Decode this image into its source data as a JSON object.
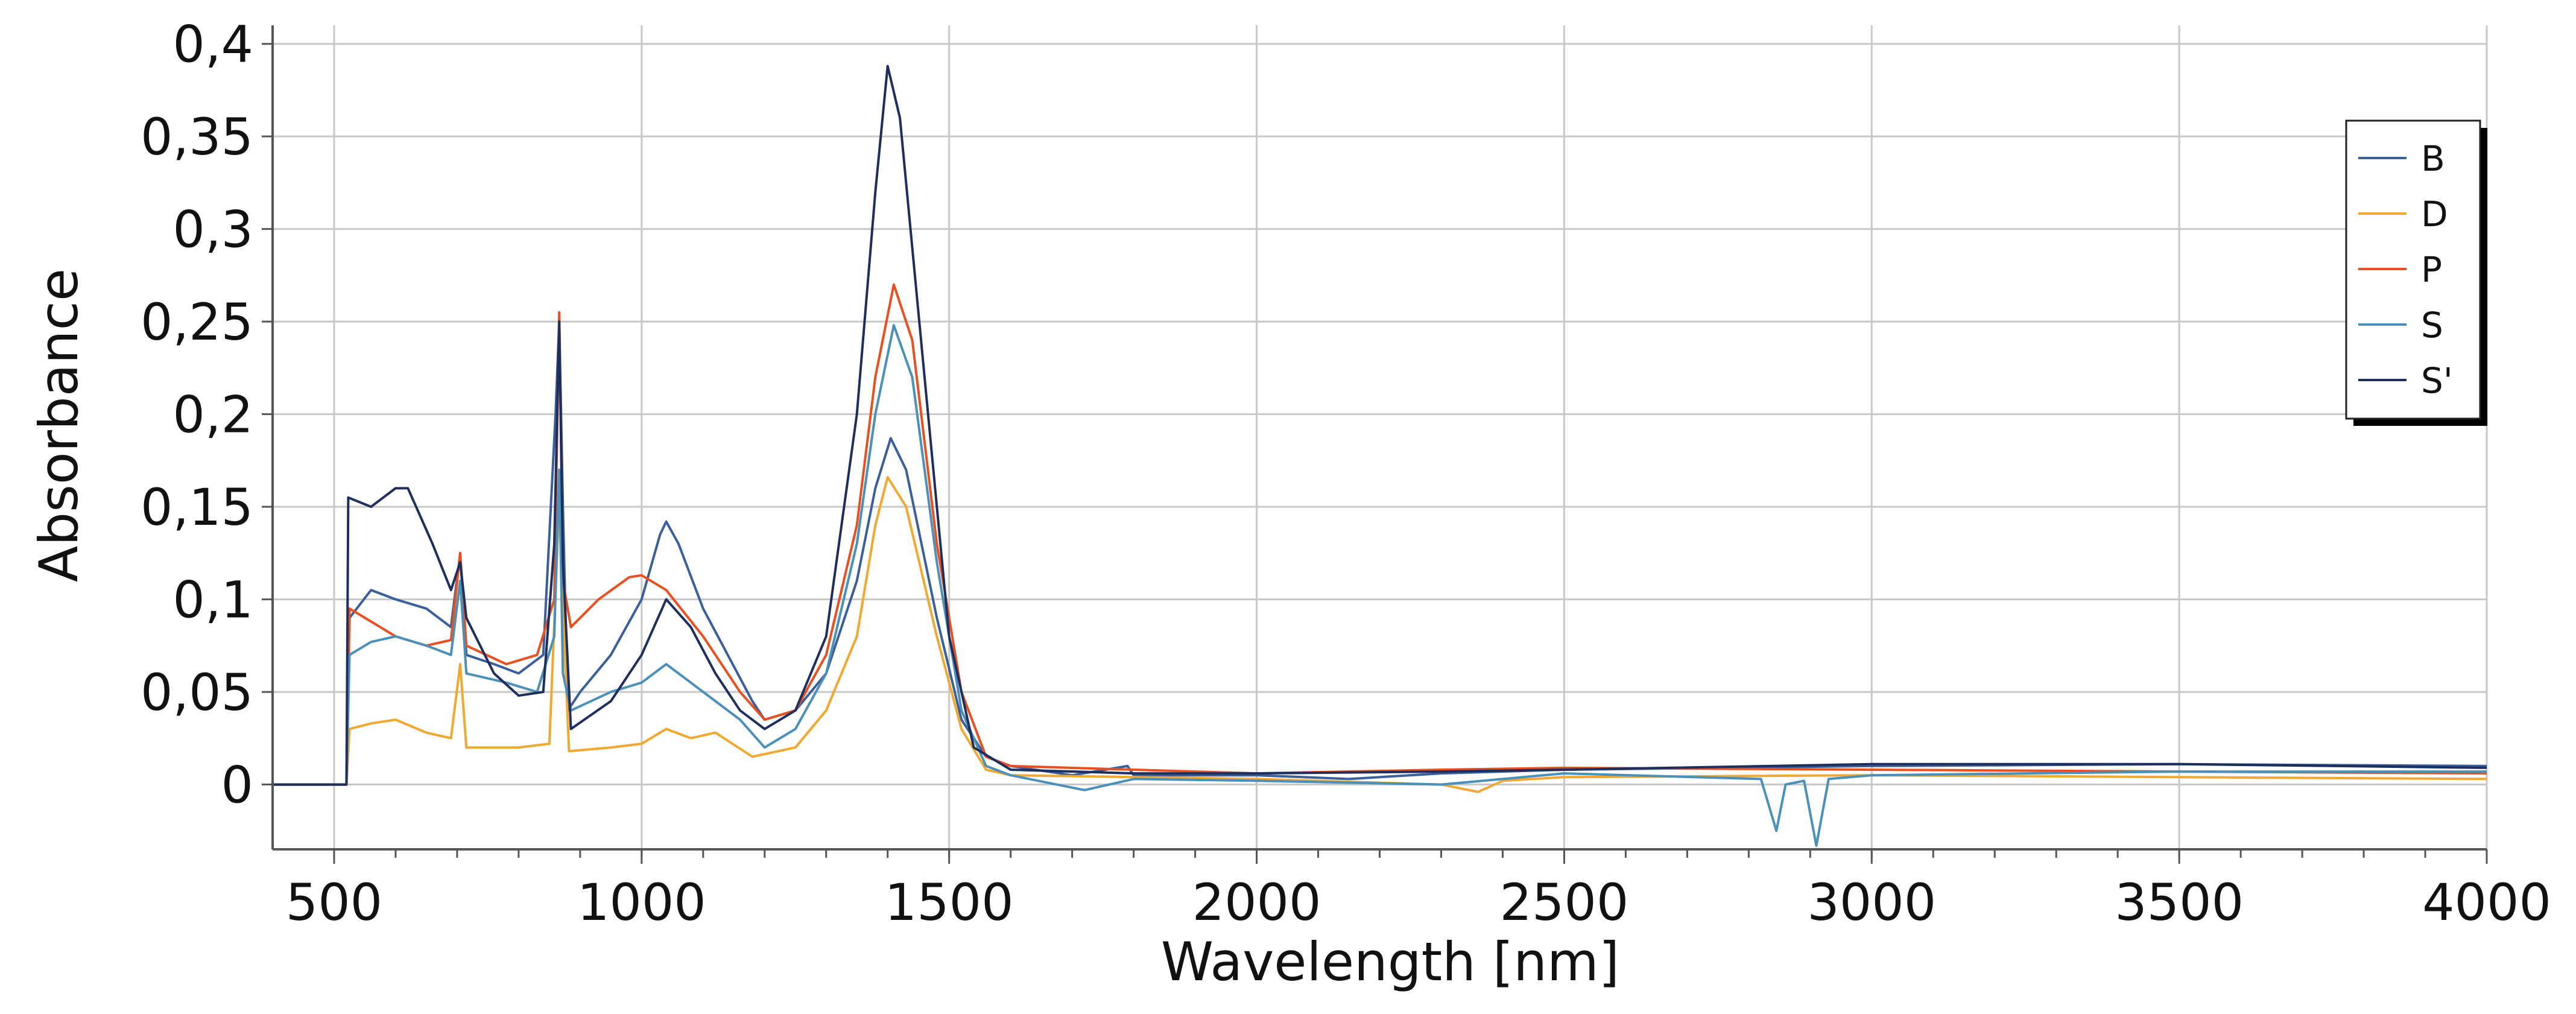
{
  "chart_data": {
    "type": "line",
    "title": "",
    "xlabel": "Wavelength [nm]",
    "ylabel": "Absorbance",
    "xlim": [
      400,
      4000
    ],
    "ylim": [
      -0.035,
      0.41
    ],
    "x_ticks": [
      500,
      1000,
      1500,
      2000,
      2500,
      3000,
      3500,
      4000
    ],
    "x_tick_labels": [
      "500",
      "1000",
      "1500",
      "2000",
      "2500",
      "3000",
      "3500",
      "4000"
    ],
    "y_ticks": [
      0,
      0.05,
      0.1,
      0.15,
      0.2,
      0.25,
      0.3,
      0.35,
      0.4
    ],
    "y_tick_labels": [
      "0",
      "0,05",
      "0,1",
      "0,15",
      "0,2",
      "0,25",
      "0,3",
      "0,35",
      "0,4"
    ],
    "x_minor_step": 100,
    "grid": true,
    "legend_position": "top-right",
    "series": [
      {
        "name": "B",
        "color": "#3a5f9a",
        "points": [
          [
            400,
            0
          ],
          [
            520,
            0
          ],
          [
            525,
            0.09
          ],
          [
            560,
            0.105
          ],
          [
            600,
            0.1
          ],
          [
            650,
            0.095
          ],
          [
            690,
            0.085
          ],
          [
            705,
            0.125
          ],
          [
            715,
            0.07
          ],
          [
            760,
            0.065
          ],
          [
            800,
            0.06
          ],
          [
            840,
            0.07
          ],
          [
            860,
            0.2
          ],
          [
            866,
            0.25
          ],
          [
            872,
            0.15
          ],
          [
            880,
            0.04
          ],
          [
            900,
            0.05
          ],
          [
            950,
            0.07
          ],
          [
            1000,
            0.1
          ],
          [
            1030,
            0.135
          ],
          [
            1040,
            0.142
          ],
          [
            1060,
            0.13
          ],
          [
            1100,
            0.095
          ],
          [
            1140,
            0.07
          ],
          [
            1180,
            0.045
          ],
          [
            1200,
            0.035
          ],
          [
            1250,
            0.04
          ],
          [
            1300,
            0.06
          ],
          [
            1350,
            0.11
          ],
          [
            1380,
            0.16
          ],
          [
            1405,
            0.187
          ],
          [
            1430,
            0.17
          ],
          [
            1480,
            0.09
          ],
          [
            1520,
            0.035
          ],
          [
            1560,
            0.015
          ],
          [
            1600,
            0.01
          ],
          [
            1700,
            0.005
          ],
          [
            1790,
            0.01
          ],
          [
            1800,
            0.005
          ],
          [
            2000,
            0.005
          ],
          [
            2150,
            0.003
          ],
          [
            2300,
            0.006
          ],
          [
            2500,
            0.008
          ],
          [
            3000,
            0.01
          ],
          [
            3500,
            0.011
          ],
          [
            4000,
            0.01
          ]
        ]
      },
      {
        "name": "D",
        "color": "#f0a830",
        "points": [
          [
            400,
            0
          ],
          [
            520,
            0
          ],
          [
            525,
            0.03
          ],
          [
            560,
            0.033
          ],
          [
            600,
            0.035
          ],
          [
            650,
            0.028
          ],
          [
            690,
            0.025
          ],
          [
            705,
            0.065
          ],
          [
            715,
            0.02
          ],
          [
            800,
            0.02
          ],
          [
            850,
            0.022
          ],
          [
            862,
            0.12
          ],
          [
            868,
            0.17
          ],
          [
            874,
            0.08
          ],
          [
            882,
            0.018
          ],
          [
            950,
            0.02
          ],
          [
            1000,
            0.022
          ],
          [
            1040,
            0.03
          ],
          [
            1080,
            0.025
          ],
          [
            1120,
            0.028
          ],
          [
            1180,
            0.015
          ],
          [
            1250,
            0.02
          ],
          [
            1300,
            0.04
          ],
          [
            1350,
            0.08
          ],
          [
            1380,
            0.14
          ],
          [
            1400,
            0.166
          ],
          [
            1430,
            0.15
          ],
          [
            1480,
            0.08
          ],
          [
            1520,
            0.03
          ],
          [
            1560,
            0.008
          ],
          [
            1600,
            0.005
          ],
          [
            1800,
            0.004
          ],
          [
            2000,
            0.003
          ],
          [
            2300,
            0.0
          ],
          [
            2360,
            -0.004
          ],
          [
            2400,
            0.002
          ],
          [
            2500,
            0.004
          ],
          [
            3000,
            0.005
          ],
          [
            3500,
            0.004
          ],
          [
            4000,
            0.003
          ]
        ]
      },
      {
        "name": "P",
        "color": "#e85020",
        "points": [
          [
            400,
            0
          ],
          [
            520,
            0
          ],
          [
            525,
            0.095
          ],
          [
            560,
            0.088
          ],
          [
            600,
            0.08
          ],
          [
            650,
            0.075
          ],
          [
            690,
            0.078
          ],
          [
            705,
            0.125
          ],
          [
            715,
            0.075
          ],
          [
            780,
            0.065
          ],
          [
            830,
            0.07
          ],
          [
            858,
            0.1
          ],
          [
            866,
            0.255
          ],
          [
            872,
            0.11
          ],
          [
            885,
            0.085
          ],
          [
            930,
            0.1
          ],
          [
            980,
            0.112
          ],
          [
            1000,
            0.113
          ],
          [
            1040,
            0.105
          ],
          [
            1100,
            0.08
          ],
          [
            1160,
            0.05
          ],
          [
            1200,
            0.035
          ],
          [
            1250,
            0.04
          ],
          [
            1300,
            0.07
          ],
          [
            1350,
            0.14
          ],
          [
            1380,
            0.22
          ],
          [
            1410,
            0.27
          ],
          [
            1440,
            0.24
          ],
          [
            1480,
            0.13
          ],
          [
            1520,
            0.05
          ],
          [
            1560,
            0.015
          ],
          [
            1600,
            0.01
          ],
          [
            1800,
            0.008
          ],
          [
            2000,
            0.006
          ],
          [
            2300,
            0.008
          ],
          [
            2500,
            0.009
          ],
          [
            3000,
            0.008
          ],
          [
            3500,
            0.007
          ],
          [
            4000,
            0.006
          ]
        ]
      },
      {
        "name": "S",
        "color": "#4a90b8",
        "points": [
          [
            400,
            0
          ],
          [
            520,
            0
          ],
          [
            525,
            0.07
          ],
          [
            560,
            0.077
          ],
          [
            600,
            0.08
          ],
          [
            650,
            0.075
          ],
          [
            690,
            0.07
          ],
          [
            705,
            0.11
          ],
          [
            715,
            0.06
          ],
          [
            780,
            0.055
          ],
          [
            830,
            0.05
          ],
          [
            858,
            0.08
          ],
          [
            866,
            0.17
          ],
          [
            872,
            0.06
          ],
          [
            885,
            0.04
          ],
          [
            950,
            0.05
          ],
          [
            1000,
            0.055
          ],
          [
            1040,
            0.065
          ],
          [
            1080,
            0.055
          ],
          [
            1120,
            0.045
          ],
          [
            1160,
            0.035
          ],
          [
            1200,
            0.02
          ],
          [
            1250,
            0.03
          ],
          [
            1300,
            0.06
          ],
          [
            1350,
            0.13
          ],
          [
            1380,
            0.2
          ],
          [
            1410,
            0.248
          ],
          [
            1440,
            0.22
          ],
          [
            1480,
            0.12
          ],
          [
            1520,
            0.04
          ],
          [
            1560,
            0.01
          ],
          [
            1600,
            0.005
          ],
          [
            1720,
            -0.003
          ],
          [
            1800,
            0.003
          ],
          [
            2000,
            0.002
          ],
          [
            2300,
            0.0
          ],
          [
            2500,
            0.006
          ],
          [
            2820,
            0.003
          ],
          [
            2845,
            -0.025
          ],
          [
            2860,
            0.0
          ],
          [
            2890,
            0.002
          ],
          [
            2910,
            -0.033
          ],
          [
            2930,
            0.003
          ],
          [
            3000,
            0.005
          ],
          [
            3500,
            0.007
          ],
          [
            4000,
            0.007
          ]
        ]
      },
      {
        "name": "S'",
        "color": "#1e2f5e",
        "points": [
          [
            400,
            0
          ],
          [
            520,
            0
          ],
          [
            523,
            0.155
          ],
          [
            560,
            0.15
          ],
          [
            600,
            0.16
          ],
          [
            620,
            0.16
          ],
          [
            660,
            0.13
          ],
          [
            690,
            0.105
          ],
          [
            705,
            0.12
          ],
          [
            715,
            0.09
          ],
          [
            760,
            0.06
          ],
          [
            800,
            0.048
          ],
          [
            840,
            0.05
          ],
          [
            858,
            0.13
          ],
          [
            866,
            0.25
          ],
          [
            872,
            0.12
          ],
          [
            885,
            0.03
          ],
          [
            950,
            0.045
          ],
          [
            1000,
            0.07
          ],
          [
            1040,
            0.1
          ],
          [
            1080,
            0.085
          ],
          [
            1120,
            0.06
          ],
          [
            1160,
            0.04
          ],
          [
            1200,
            0.03
          ],
          [
            1250,
            0.04
          ],
          [
            1300,
            0.08
          ],
          [
            1350,
            0.2
          ],
          [
            1380,
            0.32
          ],
          [
            1400,
            0.388
          ],
          [
            1420,
            0.36
          ],
          [
            1460,
            0.22
          ],
          [
            1500,
            0.08
          ],
          [
            1540,
            0.02
          ],
          [
            1600,
            0.008
          ],
          [
            1800,
            0.006
          ],
          [
            2000,
            0.006
          ],
          [
            2300,
            0.007
          ],
          [
            2500,
            0.008
          ],
          [
            3000,
            0.011
          ],
          [
            3500,
            0.011
          ],
          [
            4000,
            0.009
          ]
        ]
      }
    ]
  }
}
